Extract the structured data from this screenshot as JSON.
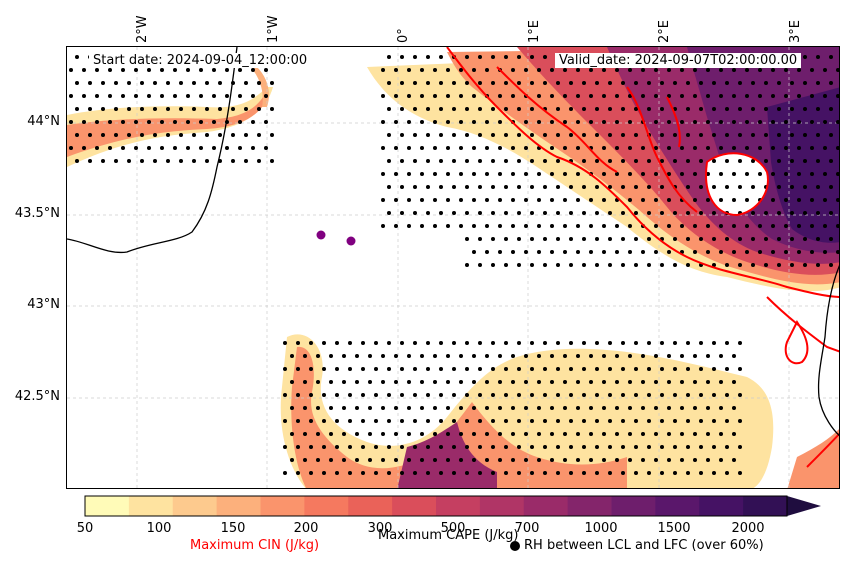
{
  "header": {
    "start_date": "Start date: 2024-09-04_12:00:00",
    "valid_date": "Valid_date: 2024-09-07T02:00:00.00"
  },
  "axes": {
    "longitudes": [
      "2°W",
      "1°W",
      "0°",
      "1°E",
      "2°E",
      "3°E"
    ],
    "latitudes": [
      "44°N",
      "43.5°N",
      "43°N",
      "42.5°N"
    ]
  },
  "colorbar": {
    "ticks": [
      "50",
      "100",
      "150",
      "200",
      "300",
      "500",
      "700",
      "1000",
      "1500",
      "2000"
    ],
    "colors": [
      "#fffbb8",
      "#fee3a0",
      "#fdca8e",
      "#fcb07c",
      "#fa946c",
      "#f5795f",
      "#ea6259",
      "#da4e5b",
      "#c53f61",
      "#b03566",
      "#9a2b69",
      "#84256b",
      "#6e1e6c",
      "#5a176b",
      "#451264",
      "#321055",
      "#1f0d3f"
    ],
    "cape_label": "Maximum CAPE (J/kg)",
    "cin_label": "Maximum CIN (J/kg)",
    "rh_label": "RH between LCL and LFC (over 60%)",
    "cin_color": "#ff0000"
  },
  "markers": {
    "point_color": "#800080"
  }
}
